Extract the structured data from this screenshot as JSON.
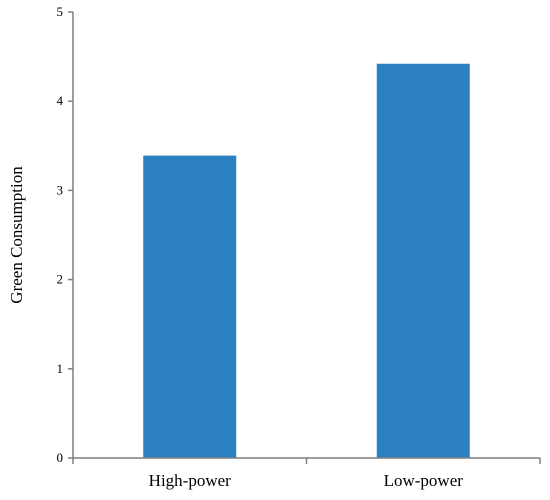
{
  "chart_data": {
    "type": "bar",
    "categories": [
      "High-power",
      "Low-power"
    ],
    "values": [
      3.39,
      4.42
    ],
    "title": "",
    "xlabel": "",
    "ylabel": "Green Consumption",
    "ylim": [
      0,
      5
    ],
    "yticks": [
      "0",
      "1",
      "2",
      "3",
      "4",
      "5"
    ],
    "grid": false,
    "legend": "none",
    "bar_color": "#2b80c2",
    "axis_color": "#7f7f7f"
  }
}
